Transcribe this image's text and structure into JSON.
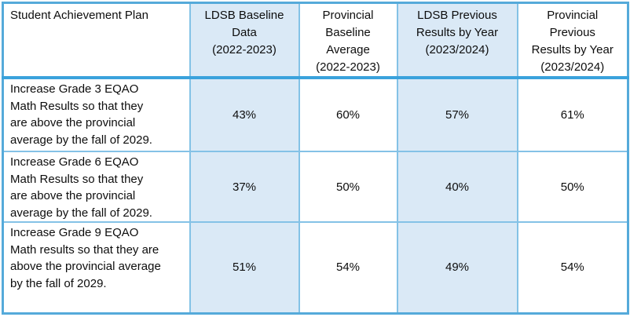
{
  "table": {
    "columns": [
      {
        "id": "plan",
        "label": "Student Achievement Plan",
        "shaded": false
      },
      {
        "id": "ldsb-baseline",
        "label": "LDSB Baseline\nData\n(2022-2023)",
        "shaded": true
      },
      {
        "id": "provincial-baseline",
        "label": "Provincial\nBaseline\nAverage\n(2022-2023)",
        "shaded": false
      },
      {
        "id": "ldsb-previous",
        "label": "LDSB Previous\nResults by Year\n(2023/2024)",
        "shaded": true
      },
      {
        "id": "provincial-previous",
        "label": "Provincial\nPrevious\nResults by Year\n(2023/2024)",
        "shaded": false
      }
    ],
    "rows": [
      {
        "goal": "Increase Grade 3 EQAO\nMath Results so that they\nare above the provincial\naverage by the fall of 2029.",
        "values": [
          "43%",
          "60%",
          "57%",
          "61%"
        ]
      },
      {
        "goal": "Increase Grade 6 EQAO\nMath Results so that they\nare above the provincial\naverage by the fall of 2029.",
        "values": [
          "37%",
          "50%",
          "40%",
          "50%"
        ]
      },
      {
        "goal": "Increase Grade 9 EQAO\nMath results so that they are\nabove the provincial average\nby the fall of 2029.",
        "values": [
          "51%",
          "54%",
          "49%",
          "54%"
        ]
      }
    ]
  },
  "colors": {
    "cell_shade": "#DAE9F6",
    "grid_border": "#84C2E6",
    "outer_border": "#55AADA",
    "header_rule": "#3AA2DC",
    "text": "#0D0D0D"
  }
}
